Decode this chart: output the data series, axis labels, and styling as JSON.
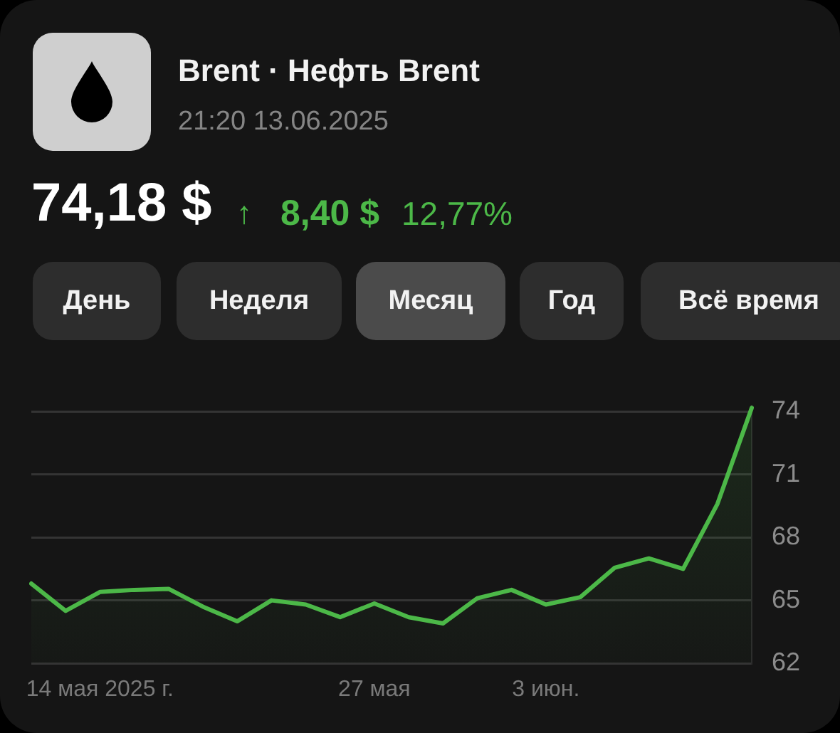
{
  "chart_data": {
    "type": "area",
    "title": "Brent · Нефть Brent",
    "subtitle": "21:20 13.06.2025",
    "annotations": [
      "74,18 $",
      "↑",
      "8,40 $",
      "12,77%",
      "День",
      "Неделя",
      "Месяц",
      "Год",
      "Всё время"
    ],
    "categories": [
      null,
      null,
      "14 мая 2025 г.",
      null,
      null,
      null,
      null,
      null,
      null,
      null,
      "27 мая",
      null,
      null,
      null,
      null,
      "3 июн.",
      null,
      null,
      null,
      null,
      null,
      null
    ],
    "values": [
      65.8,
      64.5,
      65.4,
      65.5,
      65.55,
      64.7,
      64.0,
      65.0,
      64.8,
      64.2,
      64.85,
      64.2,
      63.9,
      65.1,
      65.5,
      64.8,
      65.15,
      66.55,
      67.0,
      66.5,
      69.6,
      74.18
    ],
    "color": "#4cb848",
    "ylim": [
      62,
      74.3
    ],
    "yticks": [
      62,
      65,
      68,
      71,
      74
    ],
    "grid": "y"
  }
}
